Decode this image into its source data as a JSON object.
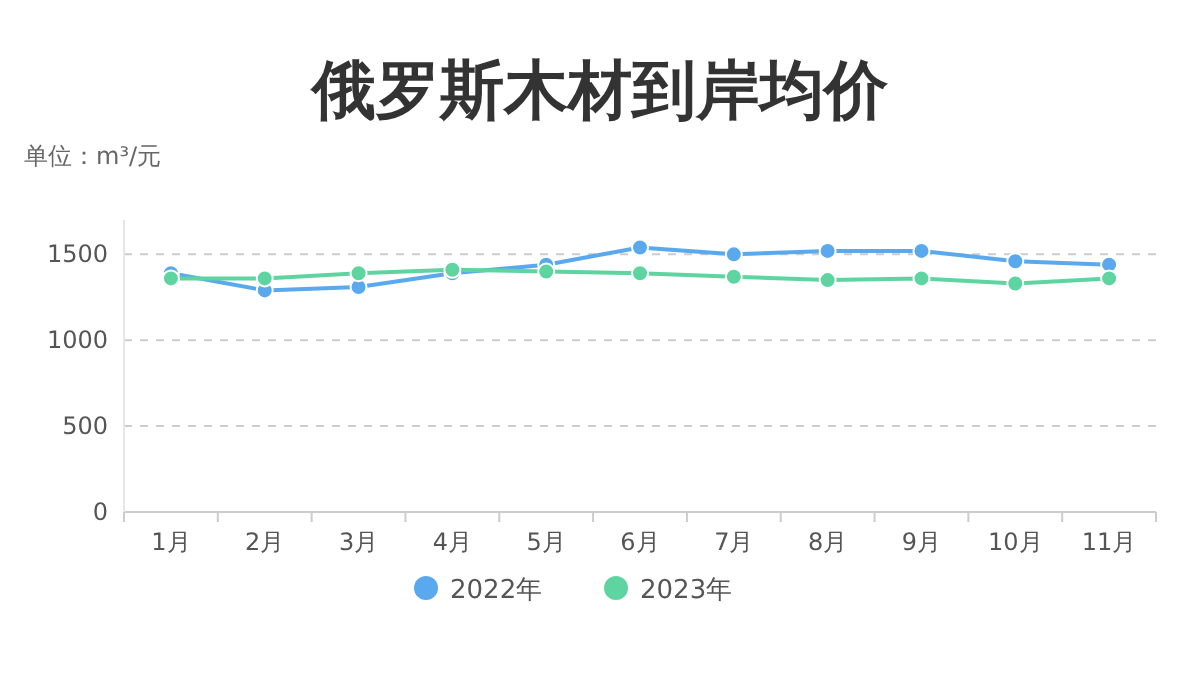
{
  "chart_data": {
    "type": "line",
    "title": "俄罗斯木材到岸均价",
    "subtitle": "单位：m³/元",
    "categories": [
      "1月",
      "2月",
      "3月",
      "4月",
      "5月",
      "6月",
      "7月",
      "8月",
      "9月",
      "10月",
      "11月"
    ],
    "series": [
      {
        "name": "2022年",
        "color": "#5aa9ee",
        "values": [
          1390,
          1290,
          1310,
          1390,
          1440,
          1540,
          1500,
          1520,
          1520,
          1460,
          1440
        ]
      },
      {
        "name": "2023年",
        "color": "#5ed4a0",
        "values": [
          1360,
          1360,
          1390,
          1410,
          1400,
          1390,
          1370,
          1350,
          1360,
          1330,
          1360
        ]
      }
    ],
    "ylim": [
      0,
      1700
    ],
    "yticks": [
      0,
      500,
      1000,
      1500
    ],
    "grid": "y",
    "legend": "bottom",
    "marker": "circle",
    "line_style": "solid"
  }
}
